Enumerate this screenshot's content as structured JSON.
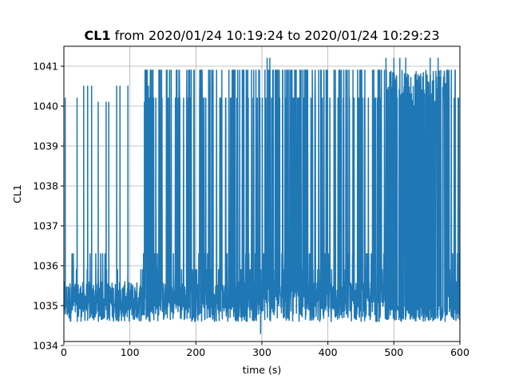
{
  "chart_data": {
    "type": "line",
    "title_bold": "CL1",
    "title_rest": " from 2020/01/24 10:19:24 to 2020/01/24 10:29:23",
    "xlabel": "time (s)",
    "ylabel": "CL1",
    "xlim": [
      0,
      600
    ],
    "ylim": [
      1034.1,
      1041.5
    ],
    "xticks": [
      0,
      100,
      200,
      300,
      400,
      500,
      600
    ],
    "yticks": [
      1034,
      1035,
      1036,
      1037,
      1038,
      1039,
      1040,
      1041
    ],
    "grid": true,
    "series": [
      {
        "color": "#1f77b4",
        "baseline": [
          1034.6,
          1035.6
        ],
        "burst_values": [
          1035.9,
          1036.3,
          1040.2,
          1040.9
        ],
        "rare_values": [
          1041.2,
          1034.3
        ],
        "spikes": [
          {
            "x": 2,
            "y": 1040.2
          },
          {
            "x": 20,
            "y": 1040.2
          },
          {
            "x": 30,
            "y": 1040.5
          },
          {
            "x": 36,
            "y": 1040.5
          },
          {
            "x": 42,
            "y": 1040.5
          },
          {
            "x": 52,
            "y": 1040.1
          },
          {
            "x": 64,
            "y": 1040.1
          },
          {
            "x": 68,
            "y": 1040.1
          },
          {
            "x": 80,
            "y": 1040.5
          },
          {
            "x": 85,
            "y": 1040.5
          },
          {
            "x": 97,
            "y": 1040.5
          },
          {
            "x": 122,
            "y": 1040.1
          },
          {
            "x": 128,
            "y": 1040.5
          },
          {
            "x": 135,
            "y": 1040.9
          },
          {
            "x": 298,
            "y": 1034.3
          },
          {
            "x": 308,
            "y": 1041.2
          },
          {
            "x": 312,
            "y": 1041.2
          },
          {
            "x": 488,
            "y": 1041.2
          },
          {
            "x": 500,
            "y": 1041.2
          },
          {
            "x": 509,
            "y": 1041.2
          },
          {
            "x": 518,
            "y": 1041.2
          },
          {
            "x": 555,
            "y": 1041.2
          },
          {
            "x": 567,
            "y": 1041.2
          }
        ],
        "dense_regions": [
          [
            120,
            600
          ]
        ],
        "solid_blocks": [
          [
            490,
            580
          ]
        ]
      }
    ]
  }
}
